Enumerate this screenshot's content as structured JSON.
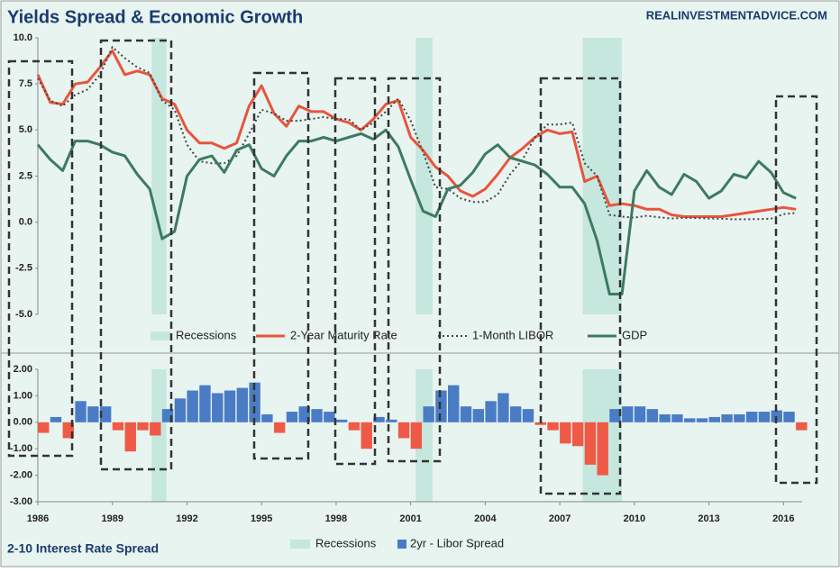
{
  "chart_data": [
    {
      "type": "line",
      "title": "Yields Spread & Economic Growth",
      "source": "REALINVESTMENTADVICE.COM",
      "x": [
        1986,
        1986.5,
        1987,
        1987.5,
        1988,
        1988.5,
        1989,
        1989.5,
        1990,
        1990.5,
        1991,
        1991.5,
        1992,
        1992.5,
        1993,
        1993.5,
        1994,
        1994.5,
        1995,
        1995.5,
        1996,
        1996.5,
        1997,
        1997.5,
        1998,
        1998.5,
        1999,
        1999.5,
        2000,
        2000.5,
        2001,
        2001.5,
        2002,
        2002.5,
        2003,
        2003.5,
        2004,
        2004.5,
        2005,
        2005.5,
        2006,
        2006.5,
        2007,
        2007.5,
        2008,
        2008.5,
        2009,
        2009.5,
        2010,
        2010.5,
        2011,
        2011.5,
        2012,
        2012.5,
        2013,
        2013.5,
        2014,
        2014.5,
        2015,
        2015.5,
        2016,
        2016.5
      ],
      "xlim": [
        1986,
        2016.75
      ],
      "ylim": [
        -5,
        10
      ],
      "yticks": [
        {
          "value": -5,
          "label": "-5.0"
        },
        -2.5,
        {
          "value": 0,
          "label": "0.0"
        },
        2.5,
        {
          "value": 5,
          "label": "5.0"
        },
        7.5,
        {
          "value": 10,
          "label": "10.0"
        }
      ],
      "recessions": {
        "name": "Recessions",
        "color": "#c6e7de",
        "periods": [
          [
            1990.58,
            1991.17
          ],
          [
            2001.2,
            2001.88
          ],
          [
            2007.92,
            2009.5
          ]
        ]
      },
      "series": [
        {
          "name": "2-Year Maturity Rate",
          "color": "#e8553d",
          "dash": false,
          "values": [
            8.0,
            6.5,
            6.4,
            7.5,
            7.6,
            8.4,
            9.3,
            8.0,
            8.2,
            8.0,
            6.7,
            6.4,
            5.0,
            4.3,
            4.3,
            4.0,
            4.3,
            6.3,
            7.4,
            5.9,
            5.2,
            6.3,
            6.0,
            6.0,
            5.6,
            5.4,
            5.0,
            5.6,
            6.4,
            6.6,
            4.6,
            3.9,
            3.0,
            2.5,
            1.7,
            1.4,
            1.8,
            2.6,
            3.5,
            4.0,
            4.6,
            5.0,
            4.8,
            4.9,
            2.2,
            2.5,
            0.9,
            1.0,
            0.9,
            0.7,
            0.7,
            0.4,
            0.3,
            0.3,
            0.3,
            0.3,
            0.4,
            0.5,
            0.6,
            0.7,
            0.8,
            0.7
          ]
        },
        {
          "name": "1-Month LIBOR",
          "color": "#444444",
          "dash": true,
          "values": [
            7.8,
            6.6,
            6.3,
            6.9,
            7.2,
            8.0,
            9.5,
            8.9,
            8.4,
            8.1,
            6.6,
            6.1,
            4.2,
            3.3,
            3.2,
            3.2,
            3.6,
            4.8,
            6.1,
            5.9,
            5.5,
            5.5,
            5.6,
            5.7,
            5.6,
            5.6,
            5.0,
            5.4,
            6.0,
            6.7,
            5.5,
            3.8,
            1.9,
            1.8,
            1.3,
            1.1,
            1.1,
            1.5,
            2.6,
            3.4,
            4.6,
            5.3,
            5.3,
            5.4,
            3.2,
            2.5,
            0.4,
            0.3,
            0.25,
            0.35,
            0.26,
            0.2,
            0.24,
            0.23,
            0.2,
            0.19,
            0.16,
            0.16,
            0.17,
            0.19,
            0.44,
            0.5
          ]
        },
        {
          "name": "GDP",
          "color": "#3d7a62",
          "dash": false,
          "values": [
            4.2,
            3.4,
            2.8,
            4.4,
            4.4,
            4.2,
            3.8,
            3.6,
            2.6,
            1.8,
            -0.9,
            -0.5,
            2.5,
            3.4,
            3.6,
            2.7,
            3.9,
            4.2,
            2.9,
            2.5,
            3.6,
            4.4,
            4.4,
            4.6,
            4.4,
            4.6,
            4.8,
            4.5,
            5.0,
            4.1,
            2.3,
            0.6,
            0.3,
            1.8,
            2.0,
            2.7,
            3.7,
            4.2,
            3.5,
            3.3,
            3.1,
            2.6,
            1.9,
            1.9,
            1.0,
            -1.0,
            -3.9,
            -3.9,
            1.7,
            2.8,
            1.9,
            1.5,
            2.6,
            2.2,
            1.3,
            1.7,
            2.6,
            2.4,
            3.3,
            2.7,
            1.6,
            1.3
          ]
        }
      ]
    },
    {
      "type": "bar",
      "title": "2-10 Interest Rate Spread",
      "x": [
        1986,
        1986.5,
        1987,
        1987.5,
        1988,
        1988.5,
        1989,
        1989.5,
        1990,
        1990.5,
        1991,
        1991.5,
        1992,
        1992.5,
        1993,
        1993.5,
        1994,
        1994.5,
        1995,
        1995.5,
        1996,
        1996.5,
        1997,
        1997.5,
        1998,
        1998.5,
        1999,
        1999.5,
        2000,
        2000.5,
        2001,
        2001.5,
        2002,
        2002.5,
        2003,
        2003.5,
        2004,
        2004.5,
        2005,
        2005.5,
        2006,
        2006.5,
        2007,
        2007.5,
        2008,
        2008.5,
        2009,
        2009.5,
        2010,
        2010.5,
        2011,
        2011.5,
        2012,
        2012.5,
        2013,
        2013.5,
        2014,
        2014.5,
        2015,
        2015.5,
        2016,
        2016.5
      ],
      "xlim": [
        1986,
        2016.75
      ],
      "xticks": [
        1986,
        1989,
        1992,
        1995,
        1998,
        2001,
        2004,
        2007,
        2010,
        2013,
        2016
      ],
      "ylim": [
        -3,
        2
      ],
      "yticks": [
        {
          "value": -3,
          "label": "-3.00"
        },
        {
          "value": -2,
          "label": "-2.00"
        },
        {
          "value": -1,
          "label": "-1.00"
        },
        {
          "value": 0,
          "label": "0.00"
        },
        {
          "value": 1,
          "label": "1.00"
        },
        {
          "value": 2,
          "label": "2.00"
        }
      ],
      "recessions": {
        "name": "Recessions",
        "color": "#c6e7de",
        "periods": [
          [
            1990.58,
            1991.17
          ],
          [
            2001.2,
            2001.88
          ],
          [
            2007.92,
            2009.5
          ]
        ]
      },
      "series": [
        {
          "name": "2yr - Libor Spread",
          "color": "#4a7cc6",
          "negative_color": "#ef5a46",
          "values": [
            -0.4,
            0.2,
            -0.6,
            0.8,
            0.6,
            0.6,
            -0.3,
            -1.1,
            -0.3,
            -0.5,
            0.5,
            0.9,
            1.2,
            1.4,
            1.1,
            1.2,
            1.3,
            1.5,
            0.3,
            -0.4,
            0.4,
            0.6,
            0.5,
            0.4,
            0.1,
            -0.3,
            -1.0,
            0.2,
            0.1,
            -0.6,
            -1.0,
            0.6,
            1.2,
            1.4,
            0.6,
            0.5,
            0.8,
            1.1,
            0.6,
            0.5,
            -0.1,
            -0.3,
            -0.8,
            -0.9,
            -1.6,
            -2.0,
            0.5,
            0.6,
            0.6,
            0.5,
            0.3,
            0.3,
            0.15,
            0.15,
            0.2,
            0.3,
            0.3,
            0.4,
            0.4,
            0.45,
            0.4,
            -0.3
          ]
        }
      ]
    }
  ]
}
